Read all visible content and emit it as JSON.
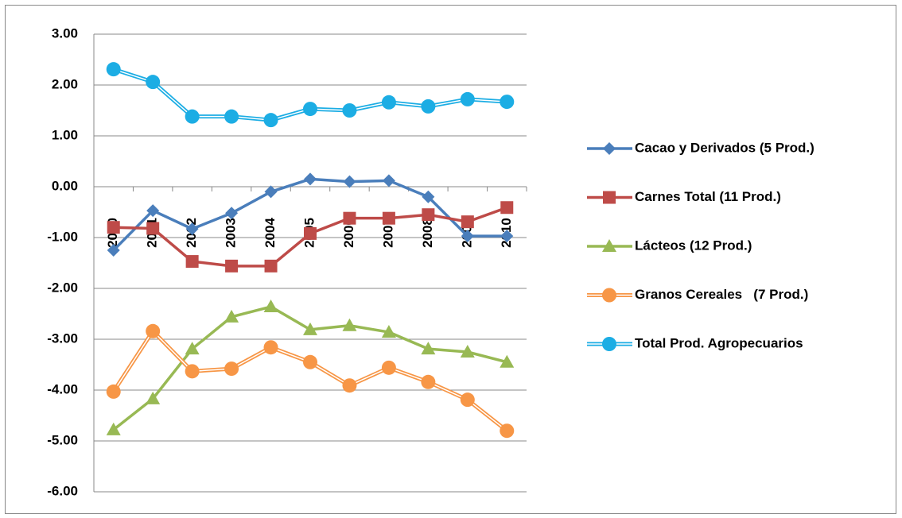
{
  "chart_data": {
    "type": "line",
    "categories": [
      "2000",
      "2001",
      "2002",
      "2003",
      "2004",
      "2005",
      "2006",
      "2007",
      "2008",
      "2009",
      "2010"
    ],
    "ylim": [
      -6,
      3
    ],
    "yticks": [
      {
        "value": -6,
        "label": "-6.00"
      },
      {
        "value": -5,
        "label": "-5.00"
      },
      {
        "value": -4,
        "label": "-4.00"
      },
      {
        "value": -3,
        "label": "-3.00"
      },
      {
        "value": -2,
        "label": "-2.00"
      },
      {
        "value": -1,
        "label": "-1.00"
      },
      {
        "value": 0,
        "label": "0.00"
      },
      {
        "value": 1,
        "label": "1.00"
      },
      {
        "value": 2,
        "label": "2.00"
      },
      {
        "value": 3,
        "label": "3.00"
      }
    ],
    "grid": true,
    "legend": "right",
    "series": [
      {
        "name": "Cacao y Derivados (5 Prod.)",
        "color": "#4a7ebb",
        "marker": "diamond",
        "values": [
          -1.25,
          -0.47,
          -0.83,
          -0.52,
          -0.1,
          0.15,
          0.1,
          0.12,
          -0.2,
          -0.97,
          -0.97
        ]
      },
      {
        "name": "Carnes Total (11 Prod.)",
        "color": "#be4b48",
        "marker": "square",
        "values": [
          -0.8,
          -0.82,
          -1.47,
          -1.56,
          -1.56,
          -0.92,
          -0.62,
          -0.62,
          -0.55,
          -0.69,
          -0.41
        ]
      },
      {
        "name": "Lácteos (12 Prod.)",
        "color": "#98b954",
        "marker": "triangle",
        "values": [
          -4.78,
          -4.17,
          -3.19,
          -2.56,
          -2.36,
          -2.81,
          -2.73,
          -2.86,
          -3.19,
          -3.25,
          -3.45
        ]
      },
      {
        "name": "Granos Cereales   (7 Prod.)",
        "color": "#f79646",
        "marker": "circle",
        "line_style": "double",
        "values": [
          -4.03,
          -2.84,
          -3.63,
          -3.58,
          -3.16,
          -3.45,
          -3.91,
          -3.56,
          -3.84,
          -4.19,
          -4.8
        ]
      },
      {
        "name": "Total Prod. Agropecuarios",
        "color": "#1cade4",
        "marker": "circle",
        "line_style": "double",
        "values": [
          2.31,
          2.06,
          1.38,
          1.38,
          1.31,
          1.53,
          1.5,
          1.66,
          1.58,
          1.72,
          1.67
        ]
      }
    ]
  }
}
